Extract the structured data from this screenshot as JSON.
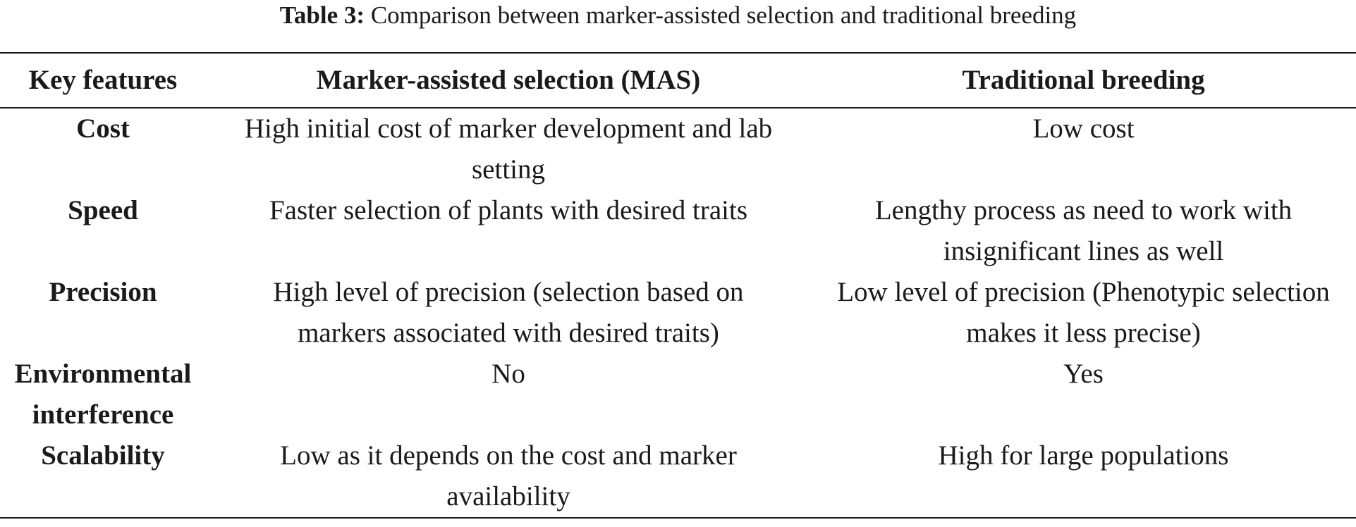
{
  "caption": {
    "label": "Table 3:",
    "text": "Comparison between marker-assisted selection and traditional breeding"
  },
  "table": {
    "headers": [
      "Key features",
      "Marker-assisted selection (MAS)",
      "Traditional breeding"
    ],
    "rows": [
      {
        "feature": "Cost",
        "mas": "High initial cost of marker development and lab setting",
        "traditional": "Low cost"
      },
      {
        "feature": "Speed",
        "mas": "Faster selection of plants with desired traits",
        "traditional": "Lengthy process as need to work with insignificant lines as well"
      },
      {
        "feature": "Precision",
        "mas": "High level of precision (selection based on markers associated with desired traits)",
        "traditional": "Low level of precision (Phenotypic selection makes it less precise)"
      },
      {
        "feature": "Environmental interference",
        "mas": "No",
        "traditional": "Yes"
      },
      {
        "feature": "Scalability",
        "mas": "Low as it depends on the cost and marker availability",
        "traditional": "High for large populations"
      }
    ]
  }
}
